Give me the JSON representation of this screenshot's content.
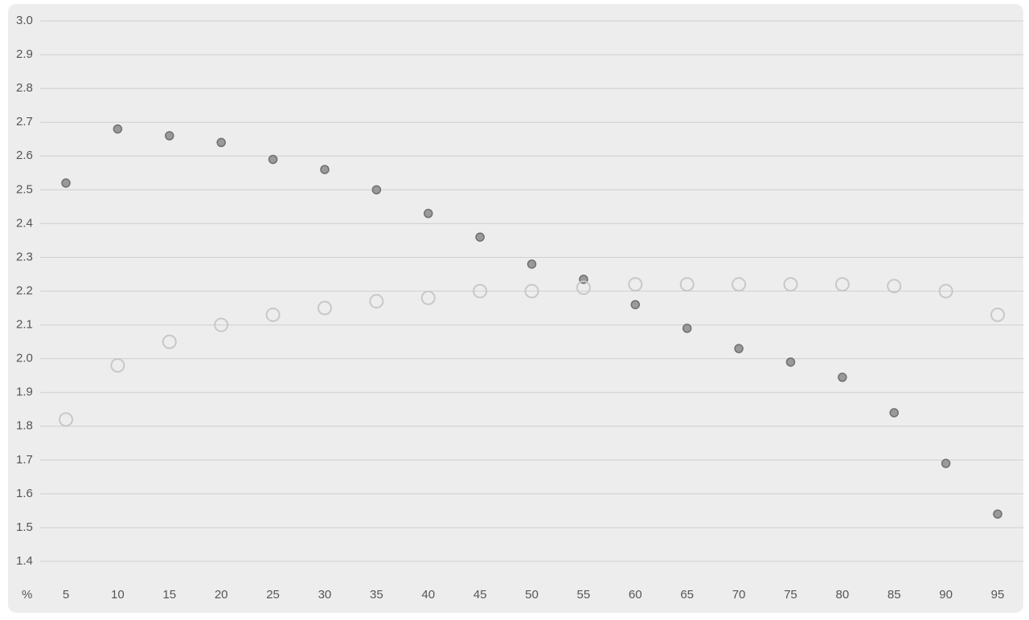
{
  "chart_data": {
    "type": "scatter",
    "x_label": "%",
    "categories": [
      "5",
      "10",
      "15",
      "20",
      "25",
      "30",
      "35",
      "40",
      "45",
      "50",
      "55",
      "60",
      "65",
      "70",
      "75",
      "80",
      "85",
      "90",
      "95"
    ],
    "series": [
      {
        "color": "#9a9a9a",
        "marker": "filled",
        "values": [
          2.52,
          2.68,
          2.66,
          2.64,
          2.59,
          2.56,
          2.5,
          2.43,
          2.36,
          2.28,
          2.235,
          2.16,
          2.09,
          2.03,
          1.99,
          1.945,
          1.84,
          1.69,
          1.54
        ]
      },
      {
        "color": "#c8c8c8",
        "marker": "hollow",
        "values": [
          1.82,
          1.98,
          2.05,
          2.1,
          2.13,
          2.15,
          2.17,
          2.18,
          2.2,
          2.2,
          2.21,
          2.22,
          2.22,
          2.22,
          2.22,
          2.22,
          2.215,
          2.2,
          2.13
        ]
      }
    ],
    "ylim": [
      1.4,
      3.0
    ],
    "yticks": [
      1.4,
      1.5,
      1.6,
      1.7,
      1.8,
      1.9,
      {
        "value": 2,
        "label": "2.0"
      },
      2.1,
      2.2,
      2.3,
      2.4,
      2.5,
      2.6,
      2.7,
      2.8,
      2.9,
      {
        "value": 3,
        "label": "3.0"
      }
    ],
    "grid": true
  }
}
